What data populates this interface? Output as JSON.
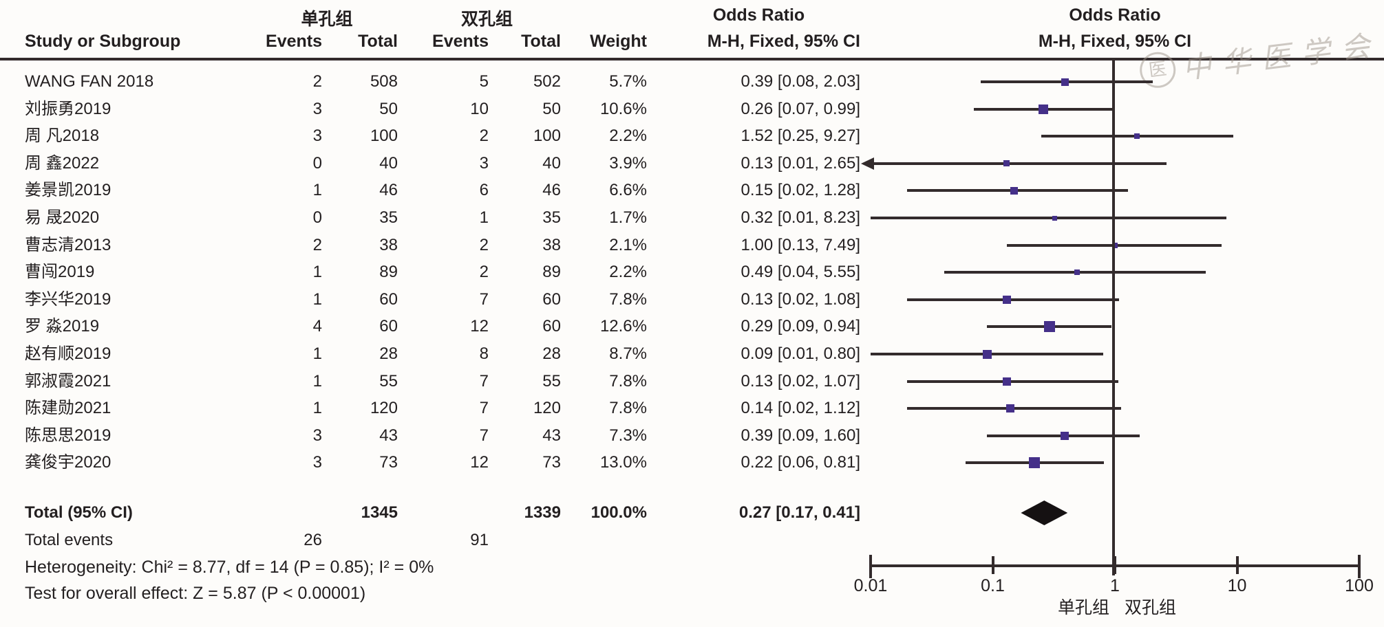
{
  "header": {
    "study_col": "Study or Subgroup",
    "group1": "单孔组",
    "group2": "双孔组",
    "events_col": "Events",
    "total_col": "Total",
    "weight_col": "Weight",
    "or_title": "Odds Ratio",
    "or_sub": "M-H, Fixed, 95% CI"
  },
  "watermark": "中华医学会",
  "watermark_seal": "医",
  "colors": {
    "marker": "#453089",
    "line": "#332b2c",
    "text": "#231f20",
    "diamond": "#151112"
  },
  "chart_data": {
    "type": "scatter",
    "subtype": "forest_plot_meta_analysis",
    "effect_measure": "Odds Ratio, M-H, Fixed, 95% CI",
    "x_scale": "log",
    "xlim": [
      0.01,
      100
    ],
    "x_ticks": [
      "0.01",
      "0.1",
      "1",
      "10",
      "100"
    ],
    "favours_left": "单孔组",
    "favours_right": "双孔组",
    "studies": [
      {
        "name": "WANG FAN 2018",
        "events1": "2",
        "total1": "508",
        "events2": "5",
        "total2": "502",
        "weight": "5.7%",
        "w": 5.7,
        "or_text": "0.39 [0.08, 2.03]",
        "or": 0.39,
        "lo": 0.08,
        "hi": 2.03,
        "arrow": ""
      },
      {
        "name": "刘振勇2019",
        "events1": "3",
        "total1": "50",
        "events2": "10",
        "total2": "50",
        "weight": "10.6%",
        "w": 10.6,
        "or_text": "0.26 [0.07, 0.99]",
        "or": 0.26,
        "lo": 0.07,
        "hi": 0.99,
        "arrow": ""
      },
      {
        "name": "周 凡2018",
        "events1": "3",
        "total1": "100",
        "events2": "2",
        "total2": "100",
        "weight": "2.2%",
        "w": 2.2,
        "or_text": "1.52 [0.25, 9.27]",
        "or": 1.52,
        "lo": 0.25,
        "hi": 9.27,
        "arrow": ""
      },
      {
        "name": "周 鑫2022",
        "events1": "0",
        "total1": "40",
        "events2": "3",
        "total2": "40",
        "weight": "3.9%",
        "w": 3.9,
        "or_text": "0.13 [0.01, 2.65]",
        "or": 0.13,
        "lo": 0.01,
        "hi": 2.65,
        "arrow": "left"
      },
      {
        "name": "姜景凯2019",
        "events1": "1",
        "total1": "46",
        "events2": "6",
        "total2": "46",
        "weight": "6.6%",
        "w": 6.6,
        "or_text": "0.15 [0.02, 1.28]",
        "or": 0.15,
        "lo": 0.02,
        "hi": 1.28,
        "arrow": ""
      },
      {
        "name": "易 晟2020",
        "events1": "0",
        "total1": "35",
        "events2": "1",
        "total2": "35",
        "weight": "1.7%",
        "w": 1.7,
        "or_text": "0.32 [0.01, 8.23]",
        "or": 0.32,
        "lo": 0.01,
        "hi": 8.23,
        "arrow": ""
      },
      {
        "name": "曹志清2013",
        "events1": "2",
        "total1": "38",
        "events2": "2",
        "total2": "38",
        "weight": "2.1%",
        "w": 2.1,
        "or_text": "1.00 [0.13, 7.49]",
        "or": 1.0,
        "lo": 0.13,
        "hi": 7.49,
        "arrow": ""
      },
      {
        "name": "曹闯2019",
        "events1": "1",
        "total1": "89",
        "events2": "2",
        "total2": "89",
        "weight": "2.2%",
        "w": 2.2,
        "or_text": "0.49 [0.04, 5.55]",
        "or": 0.49,
        "lo": 0.04,
        "hi": 5.55,
        "arrow": ""
      },
      {
        "name": "李兴华2019",
        "events1": "1",
        "total1": "60",
        "events2": "7",
        "total2": "60",
        "weight": "7.8%",
        "w": 7.8,
        "or_text": "0.13 [0.02, 1.08]",
        "or": 0.13,
        "lo": 0.02,
        "hi": 1.08,
        "arrow": ""
      },
      {
        "name": "罗 淼2019",
        "events1": "4",
        "total1": "60",
        "events2": "12",
        "total2": "60",
        "weight": "12.6%",
        "w": 12.6,
        "or_text": "0.29 [0.09, 0.94]",
        "or": 0.29,
        "lo": 0.09,
        "hi": 0.94,
        "arrow": ""
      },
      {
        "name": "赵有顺2019",
        "events1": "1",
        "total1": "28",
        "events2": "8",
        "total2": "28",
        "weight": "8.7%",
        "w": 8.7,
        "or_text": "0.09 [0.01, 0.80]",
        "or": 0.09,
        "lo": 0.01,
        "hi": 0.8,
        "arrow": ""
      },
      {
        "name": "郭淑霞2021",
        "events1": "1",
        "total1": "55",
        "events2": "7",
        "total2": "55",
        "weight": "7.8%",
        "w": 7.8,
        "or_text": "0.13 [0.02, 1.07]",
        "or": 0.13,
        "lo": 0.02,
        "hi": 1.07,
        "arrow": ""
      },
      {
        "name": "陈建勋2021",
        "events1": "1",
        "total1": "120",
        "events2": "7",
        "total2": "120",
        "weight": "7.8%",
        "w": 7.8,
        "or_text": "0.14 [0.02, 1.12]",
        "or": 0.14,
        "lo": 0.02,
        "hi": 1.12,
        "arrow": ""
      },
      {
        "name": "陈思思2019",
        "events1": "3",
        "total1": "43",
        "events2": "7",
        "total2": "43",
        "weight": "7.3%",
        "w": 7.3,
        "or_text": "0.39 [0.09, 1.60]",
        "or": 0.39,
        "lo": 0.09,
        "hi": 1.6,
        "arrow": ""
      },
      {
        "name": "龚俊宇2020",
        "events1": "3",
        "total1": "73",
        "events2": "12",
        "total2": "73",
        "weight": "13.0%",
        "w": 13.0,
        "or_text": "0.22 [0.06, 0.81]",
        "or": 0.22,
        "lo": 0.06,
        "hi": 0.81,
        "arrow": ""
      }
    ],
    "total": {
      "label": "Total (95% CI)",
      "total1": "1345",
      "total2": "1339",
      "weight": "100.0%",
      "or_text": "0.27 [0.17, 0.41]",
      "or": 0.27,
      "lo": 0.17,
      "hi": 0.41
    },
    "total_events": {
      "label": "Total events",
      "events1": "26",
      "events2": "91"
    },
    "heterogeneity": "Heterogeneity: Chi² = 8.77, df = 14 (P = 0.85); I² = 0%",
    "overall_effect": "Test for overall effect: Z = 5.87 (P < 0.00001)"
  }
}
